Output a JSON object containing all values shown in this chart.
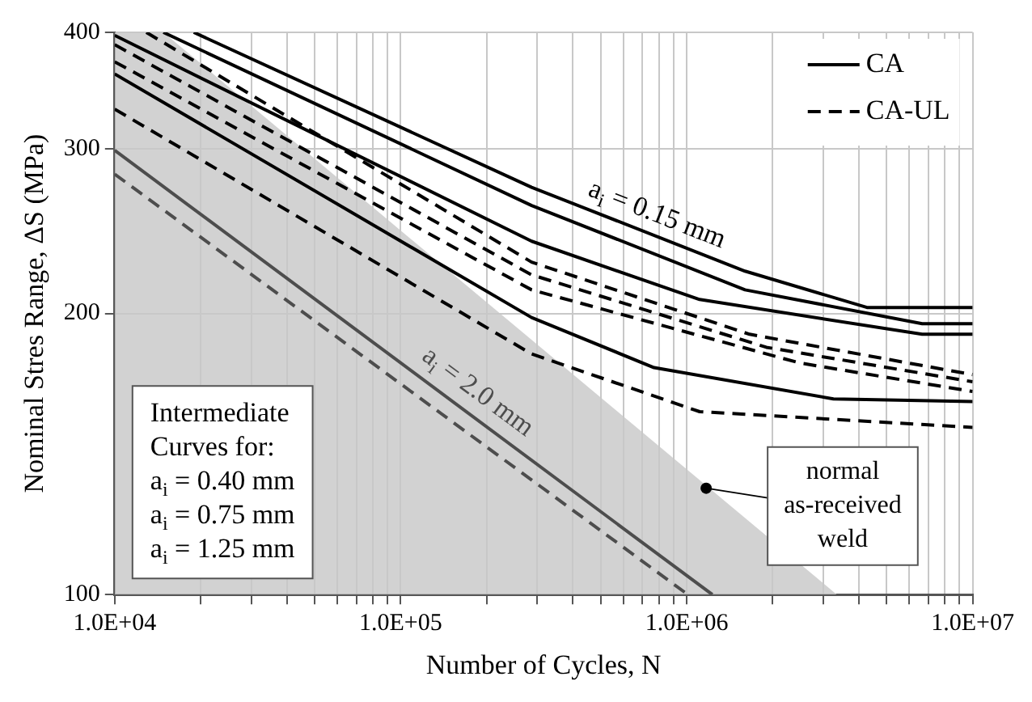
{
  "chart_data": {
    "type": "line",
    "xlabel": "Number of Cycles, N",
    "ylabel": "Nominal Stres Range, ΔS (MPa)",
    "log": "xy",
    "grid": true,
    "legend": "top right",
    "marker": "none",
    "xlim": [
      10000,
      10000000
    ],
    "ylim": [
      100,
      400
    ],
    "xticks": [
      {
        "value": 10000,
        "label": "1.0E+04"
      },
      {
        "value": 20000,
        "label": null
      },
      {
        "value": 30000,
        "label": null
      },
      {
        "value": 40000,
        "label": null
      },
      {
        "value": 50000,
        "label": null
      },
      {
        "value": 60000,
        "label": null
      },
      {
        "value": 70000,
        "label": null
      },
      {
        "value": 80000,
        "label": null
      },
      {
        "value": 90000,
        "label": null
      },
      {
        "value": 100000,
        "label": "1.0E+05"
      },
      {
        "value": 200000,
        "label": null
      },
      {
        "value": 300000,
        "label": null
      },
      {
        "value": 400000,
        "label": null
      },
      {
        "value": 500000,
        "label": null
      },
      {
        "value": 600000,
        "label": null
      },
      {
        "value": 700000,
        "label": null
      },
      {
        "value": 800000,
        "label": null
      },
      {
        "value": 900000,
        "label": null
      },
      {
        "value": 1000000,
        "label": "1.0E+06"
      },
      {
        "value": 2000000,
        "label": null
      },
      {
        "value": 3000000,
        "label": null
      },
      {
        "value": 4000000,
        "label": null
      },
      {
        "value": 5000000,
        "label": null
      },
      {
        "value": 6000000,
        "label": null
      },
      {
        "value": 7000000,
        "label": null
      },
      {
        "value": 8000000,
        "label": null
      },
      {
        "value": 9000000,
        "label": null
      },
      {
        "value": 10000000,
        "label": "1.0E+07"
      }
    ],
    "yticks": [
      100,
      200,
      300,
      400
    ],
    "series": [
      {
        "type": "area",
        "color": "#c8c8c8",
        "x": [
          10000,
          14800,
          3350000
        ],
        "values": [
          400,
          400,
          100
        ]
      },
      {
        "name": "CA",
        "color": "#000000",
        "line_style": "solid",
        "x": [
          18900,
          287000,
          1600000,
          4270000,
          10000000
        ],
        "values": [
          400,
          273,
          222,
          203,
          203
        ]
      },
      {
        "color": "#000000",
        "line_style": "solid",
        "x": [
          14800,
          287000,
          1600000,
          6660000,
          10000000
        ],
        "values": [
          400,
          261,
          212,
          195,
          195
        ]
      },
      {
        "color": "#000000",
        "line_style": "solid",
        "x": [
          10000,
          287000,
          1110000,
          6660000,
          10000000
        ],
        "values": [
          397,
          239,
          207,
          190,
          190
        ]
      },
      {
        "color": "#000000",
        "line_style": "solid",
        "x": [
          10000,
          287000,
          769000,
          3260000,
          10000000
        ],
        "values": [
          361,
          198,
          175,
          162,
          161
        ]
      },
      {
        "color": "#4d4d4d",
        "line_style": "solid",
        "x": [
          10000,
          1230000
        ],
        "values": [
          299,
          100
        ]
      },
      {
        "name": "CA-UL",
        "color": "#000000",
        "line_style": "dashed",
        "x": [
          12900,
          287000,
          1660000,
          10000000
        ],
        "values": [
          400,
          227,
          190,
          172
        ]
      },
      {
        "color": "#000000",
        "line_style": "dashed",
        "x": [
          10000,
          287000,
          1900000,
          10000000
        ],
        "values": [
          388,
          220,
          184,
          169
        ]
      },
      {
        "color": "#000000",
        "line_style": "dashed",
        "x": [
          10000,
          287000,
          2490000,
          10000000
        ],
        "values": [
          372,
          212,
          177,
          165
        ]
      },
      {
        "color": "#000000",
        "line_style": "dashed",
        "x": [
          10000,
          287000,
          1110000,
          10000000
        ],
        "values": [
          331,
          181,
          157,
          151
        ]
      },
      {
        "color": "#4d4d4d",
        "line_style": "dashed",
        "x": [
          10000,
          1010000
        ],
        "values": [
          282,
          100
        ]
      }
    ],
    "annotations": [
      {
        "text": "a$_{i}$ = 0.15 mm",
        "x": 740000,
        "y": 243
      },
      {
        "text": "a$_{i}$ = 2.0 mm",
        "x": 168000,
        "y": 158
      },
      {
        "text": "normal as-received weld",
        "x": 1170000,
        "y": 130
      },
      "Intermediate Curves for:",
      "a$_{i}$ = 0.40 mm",
      "a$_{i}$ = 0.75 mm",
      "a$_{i}$ = 1.25 mm"
    ]
  }
}
